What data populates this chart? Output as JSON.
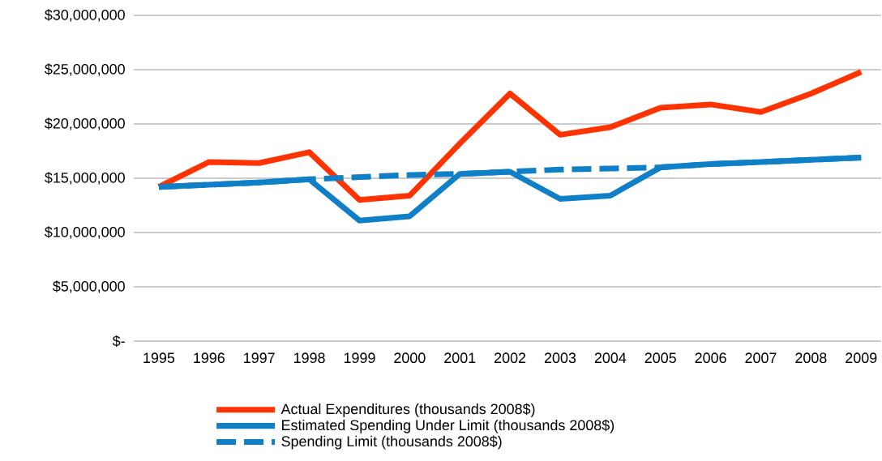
{
  "chart_data": {
    "type": "line",
    "categories": [
      "1995",
      "1996",
      "1997",
      "1998",
      "1999",
      "2000",
      "2001",
      "2002",
      "2003",
      "2004",
      "2005",
      "2006",
      "2007",
      "2008",
      "2009"
    ],
    "series": [
      {
        "name": "Actual Expenditures (thousands  2008$)",
        "color": "#ff3300",
        "line_style": "solid",
        "values": [
          14200000,
          16500000,
          16400000,
          17400000,
          13000000,
          13400000,
          18200000,
          22800000,
          19000000,
          19700000,
          21500000,
          21800000,
          21100000,
          22800000,
          24800000
        ]
      },
      {
        "name": "Estimated Spending Under Limit (thousands 2008$)",
        "color": "#0f80c8",
        "line_style": "solid",
        "values": [
          14200000,
          14400000,
          14600000,
          14900000,
          11100000,
          11500000,
          15400000,
          15600000,
          13100000,
          13400000,
          16000000,
          16300000,
          16500000,
          16700000,
          16900000
        ]
      },
      {
        "name": "Spending Limit (thousands 2008$)",
        "color": "#0f80c8",
        "line_style": "dashed",
        "values": [
          14200000,
          14400000,
          14600000,
          14900000,
          15100000,
          15300000,
          15400000,
          15600000,
          15800000,
          15900000,
          16000000,
          16300000,
          16500000,
          16700000,
          16900000
        ]
      }
    ],
    "ylim": [
      0,
      30000000
    ],
    "yticks": [
      {
        "value": 0,
        "label": "$-"
      },
      {
        "value": 5000000,
        "label": "$5,000,000"
      },
      {
        "value": 10000000,
        "label": "$10,000,000"
      },
      {
        "value": 15000000,
        "label": "$15,000,000"
      },
      {
        "value": 20000000,
        "label": "$20,000,000"
      },
      {
        "value": 25000000,
        "label": "$25,000,000"
      },
      {
        "value": 30000000,
        "label": "$30,000,000"
      }
    ],
    "grid": "y",
    "legend": "bottom",
    "marker": "none"
  }
}
